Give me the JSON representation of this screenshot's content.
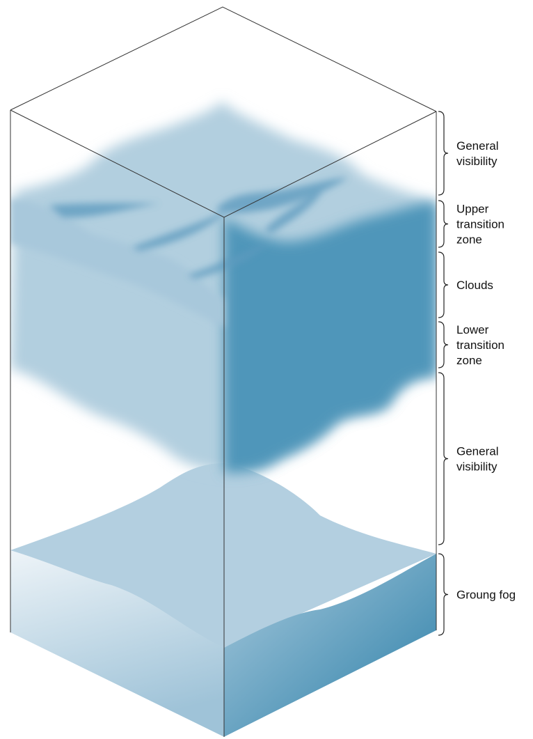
{
  "labels": [
    {
      "lines": [
        "General",
        "visibility"
      ]
    },
    {
      "lines": [
        "Upper",
        "transition",
        "zone"
      ]
    },
    {
      "lines": [
        "Clouds"
      ]
    },
    {
      "lines": [
        "Lower",
        "transition",
        "zone"
      ]
    },
    {
      "lines": [
        "General",
        "visibility"
      ]
    },
    {
      "lines": [
        "Groung fog"
      ]
    }
  ]
}
